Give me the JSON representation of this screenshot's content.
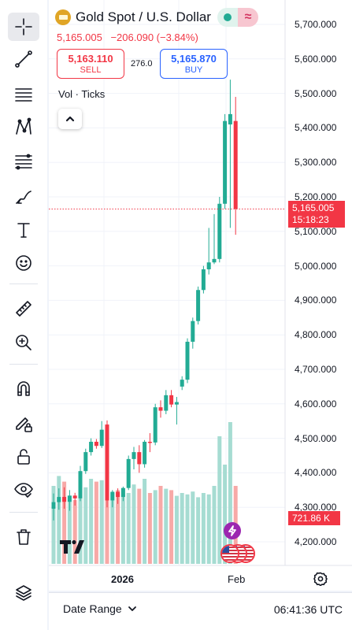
{
  "symbol": {
    "title": "Gold Spot / U.S. Dollar",
    "last_price": "5,165.005",
    "change": "−206.090 (−3.84%)",
    "market_status_icon": "green-dot-open",
    "data_status_icon": "approx-delayed"
  },
  "trade": {
    "sell_price": "5,163.110",
    "sell_label": "SELL",
    "buy_price": "5,165.870",
    "buy_label": "BUY",
    "spread": "276.0"
  },
  "volume": {
    "label": "Vol · Ticks",
    "last_label": "721.86 K"
  },
  "price_axis": {
    "labels": [
      "5,700.000",
      "5,600.000",
      "5,500.000",
      "5,400.000",
      "5,300.000",
      "5,200.000",
      "5,100.000",
      "5,000.000",
      "4,900.000",
      "4,800.000",
      "4,700.000",
      "4,600.000",
      "4,500.000",
      "4,400.000",
      "4,300.000",
      "4,200.000"
    ],
    "last_price": "5,165.005",
    "countdown": "15:18:23"
  },
  "time_axis": {
    "year_label": "2026",
    "month_label": "Feb"
  },
  "bottom_bar": {
    "date_range_label": "Date Range",
    "clock": "06:41:36 UTC"
  },
  "toolbar": {
    "tools": [
      "crosshair-icon",
      "trend-line-icon",
      "horizontal-lines-icon",
      "pattern-icon",
      "fib-icon",
      "brush-icon",
      "text-icon",
      "emoji-icon",
      "ruler-icon",
      "zoom-in-icon",
      "magnet-icon",
      "lock-drawing-icon",
      "lock-icon",
      "eye-icon",
      "trash-icon",
      "layers-icon"
    ]
  },
  "colors": {
    "up": "#22ab94",
    "down": "#f23645",
    "vol_up": "#a6dcd2",
    "vol_down": "#f7a9a7",
    "accent": "#2962ff"
  },
  "chart_data": {
    "type": "candlestick",
    "title": "Gold Spot / U.S. Dollar",
    "ylim": [
      4150,
      5750
    ],
    "y_ticks": [
      4200,
      4300,
      4400,
      4500,
      4600,
      4700,
      4800,
      4900,
      5000,
      5100,
      5200,
      5300,
      5400,
      5500,
      5600,
      5700
    ],
    "last_price": 5165.005,
    "candles": [
      {
        "o": 4296,
        "h": 4340,
        "l": 4262,
        "c": 4315
      },
      {
        "o": 4315,
        "h": 4355,
        "l": 4293,
        "c": 4330
      },
      {
        "o": 4330,
        "h": 4358,
        "l": 4296,
        "c": 4316
      },
      {
        "o": 4316,
        "h": 4350,
        "l": 4290,
        "c": 4334
      },
      {
        "o": 4334,
        "h": 4342,
        "l": 4305,
        "c": 4326
      },
      {
        "o": 4326,
        "h": 4420,
        "l": 4318,
        "c": 4405
      },
      {
        "o": 4405,
        "h": 4470,
        "l": 4397,
        "c": 4460
      },
      {
        "o": 4460,
        "h": 4500,
        "l": 4450,
        "c": 4490
      },
      {
        "o": 4490,
        "h": 4498,
        "l": 4470,
        "c": 4478
      },
      {
        "o": 4478,
        "h": 4550,
        "l": 4472,
        "c": 4525
      },
      {
        "o": 4540,
        "h": 4552,
        "l": 4300,
        "c": 4320
      },
      {
        "o": 4320,
        "h": 4350,
        "l": 4300,
        "c": 4345
      },
      {
        "o": 4345,
        "h": 4355,
        "l": 4310,
        "c": 4330
      },
      {
        "o": 4330,
        "h": 4360,
        "l": 4318,
        "c": 4356
      },
      {
        "o": 4356,
        "h": 4450,
        "l": 4350,
        "c": 4440
      },
      {
        "o": 4440,
        "h": 4475,
        "l": 4410,
        "c": 4460
      },
      {
        "o": 4460,
        "h": 4480,
        "l": 4400,
        "c": 4425
      },
      {
        "o": 4425,
        "h": 4495,
        "l": 4415,
        "c": 4490
      },
      {
        "o": 4490,
        "h": 4515,
        "l": 4460,
        "c": 4488
      },
      {
        "o": 4488,
        "h": 4600,
        "l": 4480,
        "c": 4590
      },
      {
        "o": 4590,
        "h": 4610,
        "l": 4560,
        "c": 4580
      },
      {
        "o": 4580,
        "h": 4640,
        "l": 4570,
        "c": 4625
      },
      {
        "o": 4625,
        "h": 4640,
        "l": 4590,
        "c": 4598
      },
      {
        "o": 4598,
        "h": 4620,
        "l": 4540,
        "c": 4605
      },
      {
        "o": 4650,
        "h": 4680,
        "l": 4640,
        "c": 4670
      },
      {
        "o": 4670,
        "h": 4790,
        "l": 4660,
        "c": 4780
      },
      {
        "o": 4780,
        "h": 4850,
        "l": 4760,
        "c": 4840
      },
      {
        "o": 4840,
        "h": 4940,
        "l": 4830,
        "c": 4930
      },
      {
        "o": 4930,
        "h": 5000,
        "l": 4920,
        "c": 4990
      },
      {
        "o": 4990,
        "h": 5110,
        "l": 4975,
        "c": 5010
      },
      {
        "o": 5010,
        "h": 5150,
        "l": 5005,
        "c": 5020
      },
      {
        "o": 5020,
        "h": 5200,
        "l": 5010,
        "c": 5180
      },
      {
        "o": 5180,
        "h": 5440,
        "l": 5165,
        "c": 5420
      },
      {
        "o": 5410,
        "h": 5540,
        "l": 5110,
        "c": 5440
      },
      {
        "o": 5420,
        "h": 5490,
        "l": 5090,
        "c": 5165
      }
    ],
    "volumes": [
      0.55,
      0.62,
      0.58,
      0.48,
      0.45,
      0.5,
      0.54,
      0.6,
      0.58,
      0.59,
      0.6,
      0.5,
      0.52,
      0.49,
      0.5,
      0.56,
      0.53,
      0.6,
      0.5,
      0.52,
      0.55,
      0.53,
      0.52,
      0.48,
      0.5,
      0.49,
      0.51,
      0.47,
      0.5,
      0.49,
      0.55,
      0.9,
      0.7,
      1.0,
      0.55
    ]
  }
}
